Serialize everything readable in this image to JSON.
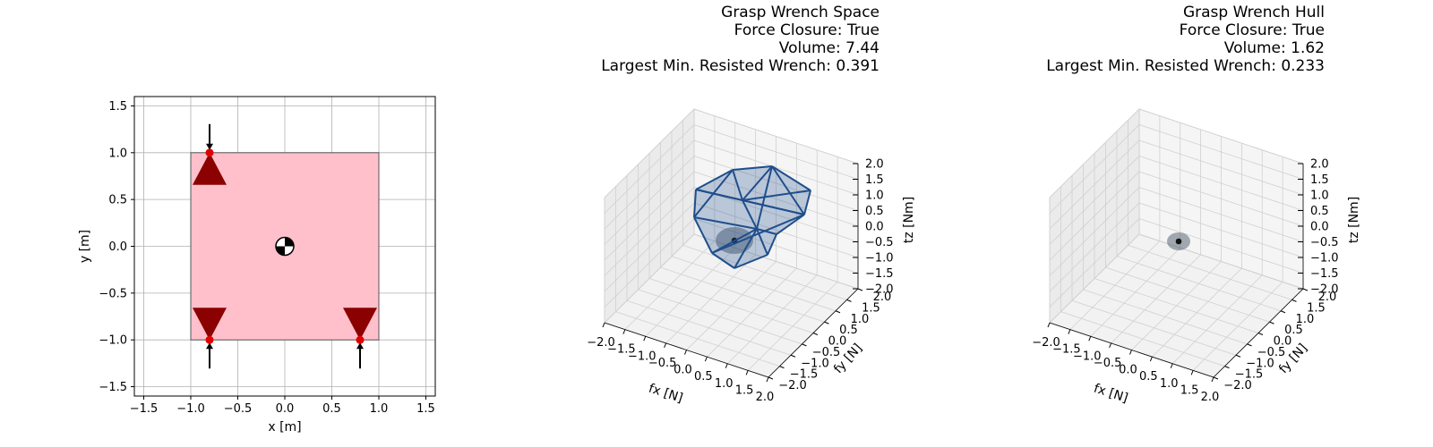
{
  "chart_data": [
    {
      "type": "scatter",
      "xlabel": "x [m]",
      "ylabel": "y [m]",
      "xlim": [
        -1.6,
        1.6
      ],
      "ylim": [
        -1.6,
        1.6
      ],
      "xticks": [
        "−1.5",
        "−1.0",
        "−0.5",
        "0.0",
        "0.5",
        "1.0",
        "1.5"
      ],
      "yticks": [
        "−1.5",
        "−1.0",
        "−0.5",
        "0.0",
        "0.5",
        "1.0",
        "1.5"
      ],
      "grid": true,
      "object": {
        "shape": "square",
        "x": [
          -1.0,
          1.0
        ],
        "y": [
          -1.0,
          1.0
        ],
        "fill": "#ffc0cb"
      },
      "center_of_mass": {
        "x": 0.0,
        "y": 0.0
      },
      "contacts": [
        {
          "x": -0.8,
          "y": 1.0,
          "normal": [
            0,
            -1
          ]
        },
        {
          "x": -0.8,
          "y": -1.0,
          "normal": [
            0,
            1
          ]
        },
        {
          "x": 0.8,
          "y": -1.0,
          "normal": [
            0,
            1
          ]
        }
      ],
      "contact_color": "#e00000",
      "cone_color": "#8b0000"
    },
    {
      "type": "3d-hull",
      "title_lines": [
        "Grasp Wrench Space",
        "Force Closure: True",
        "Volume: 7.44",
        "Largest Min. Resisted Wrench: 0.391"
      ],
      "xlabel": "fx [N]",
      "ylabel": "fy [N]",
      "zlabel": "tz [Nm]",
      "xlim": [
        -2,
        2
      ],
      "ylim": [
        -2,
        2
      ],
      "zlim": [
        -2,
        2
      ],
      "xticks": [
        "−2.0",
        "−1.5",
        "−1.0",
        "−0.5",
        "0.0",
        "0.5",
        "1.0",
        "1.5",
        "2.0"
      ],
      "yticks": [
        "−2.0",
        "−1.5",
        "−1.0",
        "−0.5",
        "0.0",
        "0.5",
        "1.0",
        "1.5",
        "2.0"
      ],
      "zticks": [
        "−2.0",
        "−1.5",
        "−1.0",
        "−0.5",
        "0.0",
        "0.5",
        "1.0",
        "1.5",
        "2.0"
      ],
      "force_closure": true,
      "volume": 7.44,
      "largest_min_resisted_wrench": 0.391,
      "hull_color": "#1f4e8c"
    },
    {
      "type": "3d-hull",
      "title_lines": [
        "Grasp Wrench Hull",
        "Force Closure: True",
        "Volume: 1.62",
        "Largest Min. Resisted Wrench: 0.233"
      ],
      "xlabel": "fx [N]",
      "ylabel": "fy [N]",
      "zlabel": "tz [Nm]",
      "xlim": [
        -2,
        2
      ],
      "ylim": [
        -2,
        2
      ],
      "zlim": [
        -2,
        2
      ],
      "xticks": [
        "−2.0",
        "−1.5",
        "−1.0",
        "−0.5",
        "0.0",
        "0.5",
        "1.0",
        "1.5",
        "2.0"
      ],
      "yticks": [
        "−2.0",
        "−1.5",
        "−1.0",
        "−0.5",
        "0.0",
        "0.5",
        "1.0",
        "1.5",
        "2.0"
      ],
      "zticks": [
        "−2.0",
        "−1.5",
        "−1.0",
        "−0.5",
        "0.0",
        "0.5",
        "1.0",
        "1.5",
        "2.0"
      ],
      "force_closure": true,
      "volume": 1.62,
      "largest_min_resisted_wrench": 0.233,
      "hull_color": "#1f4e8c"
    }
  ]
}
